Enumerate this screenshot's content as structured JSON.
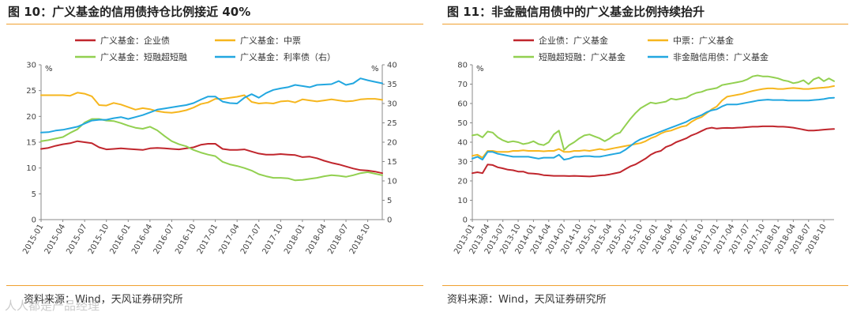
{
  "figures": {
    "left": {
      "title": "图 10：广义基金的信用债持仓比例接近 40%",
      "source": "资料来源：Wind，天风证券研究所"
    },
    "right": {
      "title": "图 11：非金融信用债中的广义基金比例持续抬升",
      "source": "资料来源：Wind，天风证券研究所"
    }
  },
  "watermark": "人人都是产品经理",
  "colors": {
    "red": "#C0262D",
    "yellow": "#F6B61E",
    "green": "#92D050",
    "blue": "#22A7E0",
    "rule": "#F0A030"
  },
  "chart_data": [
    {
      "type": "line",
      "title": "图 10：广义基金的信用债持仓比例接近 40%",
      "y_left": {
        "unit": "%",
        "ylim": [
          0,
          30
        ],
        "ticks": [
          "0",
          "5",
          "10",
          "15",
          "20",
          "25",
          "30"
        ]
      },
      "y_right": {
        "unit": "%",
        "ylim": [
          0,
          40
        ],
        "ticks": [
          "0",
          "5",
          "10",
          "15",
          "20",
          "25",
          "30",
          "35",
          "40"
        ]
      },
      "x_range": [
        0,
        47
      ],
      "x_ticks": [
        {
          "label": "2015-01",
          "i": 0
        },
        {
          "label": "2015-04",
          "i": 3
        },
        {
          "label": "2015-07",
          "i": 6
        },
        {
          "label": "2015-10",
          "i": 9
        },
        {
          "label": "2016-01",
          "i": 12
        },
        {
          "label": "2016-04",
          "i": 15
        },
        {
          "label": "2016-07",
          "i": 18
        },
        {
          "label": "2016-10",
          "i": 21
        },
        {
          "label": "2017-01",
          "i": 24
        },
        {
          "label": "2017-04",
          "i": 27
        },
        {
          "label": "2017-07",
          "i": 30
        },
        {
          "label": "2017-10",
          "i": 33
        },
        {
          "label": "2018-01",
          "i": 36
        },
        {
          "label": "2018-04",
          "i": 39
        },
        {
          "label": "2018-07",
          "i": 42
        },
        {
          "label": "2018-10",
          "i": 45
        }
      ],
      "series": [
        {
          "name": "广义基金：企业债",
          "color": "#C0262D",
          "axis": "left",
          "values": [
            13.7,
            13.9,
            14.3,
            14.6,
            14.8,
            15.2,
            15.0,
            14.8,
            14.0,
            13.6,
            13.7,
            13.8,
            13.7,
            13.6,
            13.5,
            13.8,
            13.9,
            13.8,
            13.7,
            13.6,
            13.8,
            14.0,
            14.5,
            14.7,
            14.7,
            13.7,
            13.5,
            13.5,
            13.6,
            13.2,
            12.8,
            12.6,
            12.6,
            12.7,
            12.6,
            12.5,
            12.1,
            12.2,
            11.9,
            11.4,
            11.0,
            10.7,
            10.3,
            9.9,
            9.6,
            9.5,
            9.3,
            9.0
          ]
        },
        {
          "name": "广义基金：中票",
          "color": "#F6B61E",
          "axis": "left",
          "values": [
            24.1,
            24.1,
            24.1,
            24.1,
            24.0,
            24.6,
            24.4,
            23.9,
            22.2,
            22.1,
            22.6,
            22.3,
            21.8,
            21.3,
            21.6,
            21.4,
            21.0,
            20.8,
            20.7,
            20.9,
            21.2,
            21.7,
            22.4,
            22.7,
            23.4,
            23.4,
            23.6,
            23.8,
            24.1,
            22.8,
            22.5,
            22.6,
            22.5,
            22.9,
            23.0,
            22.7,
            23.3,
            23.1,
            22.9,
            23.1,
            23.3,
            23.1,
            22.9,
            23.0,
            23.3,
            23.4,
            23.4,
            23.2
          ]
        },
        {
          "name": "广义基金：短融超短融",
          "color": "#92D050",
          "axis": "left",
          "values": [
            15.2,
            15.4,
            15.7,
            16.0,
            16.8,
            17.5,
            18.8,
            19.5,
            19.5,
            19.2,
            19.1,
            18.7,
            18.2,
            17.8,
            17.6,
            18.0,
            17.3,
            16.2,
            15.2,
            14.6,
            14.2,
            13.5,
            13.0,
            12.6,
            12.3,
            11.2,
            10.7,
            10.4,
            10.0,
            9.5,
            8.8,
            8.4,
            8.1,
            8.1,
            8.0,
            7.6,
            7.7,
            7.9,
            8.1,
            8.4,
            8.6,
            8.5,
            8.3,
            8.6,
            9.0,
            9.2,
            8.9,
            8.6
          ]
        },
        {
          "name": "广义基金：利率债（右）",
          "color": "#22A7E0",
          "axis": "right",
          "values": [
            22.5,
            22.6,
            23.0,
            23.2,
            23.6,
            24.0,
            24.8,
            25.6,
            25.8,
            25.8,
            26.2,
            26.5,
            26.0,
            26.5,
            27.0,
            27.7,
            28.4,
            28.7,
            29.0,
            29.3,
            29.6,
            30.1,
            31.0,
            31.8,
            31.8,
            30.5,
            30.1,
            30.0,
            31.5,
            32.4,
            31.5,
            32.7,
            33.5,
            33.9,
            34.2,
            34.8,
            34.5,
            34.2,
            34.8,
            34.9,
            35.0,
            35.8,
            34.8,
            35.2,
            36.5,
            36.0,
            35.6,
            35.2
          ]
        }
      ]
    },
    {
      "type": "line",
      "title": "图 11：非金融信用债中的广义基金比例持续抬升",
      "y_left": {
        "unit": "%",
        "ylim": [
          0,
          80
        ],
        "ticks": [
          "0",
          "10",
          "20",
          "30",
          "40",
          "50",
          "60",
          "70",
          "80"
        ]
      },
      "x_range": [
        0,
        71
      ],
      "x_ticks": [
        {
          "label": "2013-01",
          "i": 0
        },
        {
          "label": "2013-04",
          "i": 3
        },
        {
          "label": "2013-07",
          "i": 6
        },
        {
          "label": "2013-10",
          "i": 9
        },
        {
          "label": "2014-01",
          "i": 12
        },
        {
          "label": "2014-04",
          "i": 15
        },
        {
          "label": "2014-07",
          "i": 18
        },
        {
          "label": "2014-10",
          "i": 21
        },
        {
          "label": "2015-01",
          "i": 24
        },
        {
          "label": "2015-04",
          "i": 27
        },
        {
          "label": "2015-07",
          "i": 30
        },
        {
          "label": "2015-10",
          "i": 33
        },
        {
          "label": "2016-01",
          "i": 36
        },
        {
          "label": "2016-04",
          "i": 39
        },
        {
          "label": "2016-07",
          "i": 42
        },
        {
          "label": "2016-10",
          "i": 45
        },
        {
          "label": "2017-01",
          "i": 48
        },
        {
          "label": "2017-04",
          "i": 51
        },
        {
          "label": "2017-07",
          "i": 54
        },
        {
          "label": "2017-10",
          "i": 57
        },
        {
          "label": "2018-01",
          "i": 60
        },
        {
          "label": "2018-04",
          "i": 63
        },
        {
          "label": "2018-07",
          "i": 66
        },
        {
          "label": "2018-10",
          "i": 69
        }
      ],
      "series": [
        {
          "name": "企业债：广义基金",
          "color": "#C0262D",
          "values": [
            24.0,
            24.5,
            24.0,
            28.5,
            28.2,
            27.0,
            26.5,
            25.8,
            25.5,
            24.8,
            24.8,
            23.9,
            23.8,
            23.5,
            23.0,
            22.8,
            22.6,
            22.6,
            22.6,
            22.5,
            22.6,
            22.5,
            22.4,
            22.3,
            22.5,
            22.8,
            23.0,
            23.4,
            23.9,
            24.5,
            26.0,
            27.5,
            28.5,
            30.0,
            31.5,
            33.5,
            34.8,
            35.5,
            37.5,
            38.5,
            40.0,
            41.0,
            42.0,
            43.5,
            44.5,
            45.8,
            47.0,
            47.5,
            47.0,
            47.3,
            47.4,
            47.3,
            47.5,
            47.6,
            47.8,
            48.0,
            48.0,
            48.2,
            48.2,
            48.2,
            48.0,
            48.0,
            47.8,
            47.5,
            47.0,
            46.5,
            46.0,
            46.0,
            46.2,
            46.5,
            46.7,
            46.8
          ]
        },
        {
          "name": "中票：广义基金",
          "color": "#F6B61E",
          "values": [
            33.0,
            33.5,
            32.0,
            35.5,
            35.5,
            35.0,
            35.0,
            35.0,
            35.5,
            35.5,
            35.8,
            35.5,
            35.5,
            35.5,
            35.3,
            35.5,
            35.5,
            36.5,
            35.0,
            35.0,
            35.5,
            35.5,
            35.8,
            35.5,
            36.0,
            36.5,
            36.0,
            36.5,
            37.0,
            37.5,
            38.0,
            38.5,
            39.0,
            39.5,
            40.5,
            42.0,
            43.0,
            44.5,
            45.5,
            46.0,
            47.0,
            48.0,
            48.5,
            50.5,
            52.0,
            53.0,
            55.0,
            57.0,
            58.5,
            61.5,
            63.5,
            64.0,
            64.5,
            65.0,
            65.8,
            66.5,
            67.0,
            67.5,
            67.8,
            67.8,
            67.5,
            67.5,
            67.8,
            68.0,
            67.8,
            67.5,
            67.5,
            67.8,
            68.0,
            68.2,
            68.5,
            69.0
          ]
        },
        {
          "name": "短融超短融：广义基金",
          "color": "#92D050",
          "values": [
            43.5,
            44.0,
            42.5,
            45.5,
            45.0,
            42.5,
            41.0,
            40.0,
            40.5,
            40.0,
            39.0,
            39.5,
            40.5,
            39.0,
            38.5,
            40.0,
            44.0,
            46.0,
            36.0,
            38.5,
            40.0,
            42.0,
            43.5,
            44.0,
            43.0,
            42.0,
            40.5,
            42.0,
            44.0,
            45.0,
            48.5,
            52.0,
            55.0,
            57.5,
            59.0,
            60.5,
            60.0,
            60.5,
            61.0,
            62.5,
            62.0,
            62.5,
            63.0,
            64.5,
            65.5,
            66.0,
            67.0,
            67.5,
            68.0,
            69.5,
            70.0,
            70.5,
            71.0,
            71.5,
            72.5,
            74.0,
            74.5,
            74.0,
            74.0,
            73.5,
            73.0,
            72.0,
            71.5,
            70.5,
            71.0,
            72.0,
            70.0,
            72.5,
            73.5,
            71.5,
            73.0,
            71.5
          ]
        },
        {
          "name": "非金融信用债：广义基金",
          "color": "#22A7E0",
          "values": [
            31.5,
            32.5,
            31.0,
            35.0,
            35.0,
            34.0,
            33.5,
            33.0,
            32.5,
            32.5,
            32.5,
            32.5,
            32.0,
            31.5,
            32.0,
            32.0,
            32.0,
            33.5,
            31.0,
            31.5,
            32.5,
            32.5,
            32.8,
            32.8,
            32.5,
            32.5,
            33.0,
            33.5,
            34.0,
            34.5,
            36.0,
            38.0,
            40.0,
            41.5,
            42.5,
            43.5,
            44.5,
            45.5,
            46.5,
            47.5,
            48.5,
            49.5,
            50.5,
            52.0,
            53.0,
            54.0,
            55.5,
            56.5,
            57.0,
            58.5,
            59.5,
            59.5,
            59.5,
            60.0,
            60.5,
            61.0,
            61.5,
            61.8,
            62.0,
            61.8,
            61.8,
            61.8,
            61.5,
            61.5,
            61.5,
            61.5,
            61.5,
            61.8,
            62.0,
            62.3,
            62.8,
            63.0
          ]
        }
      ]
    }
  ]
}
